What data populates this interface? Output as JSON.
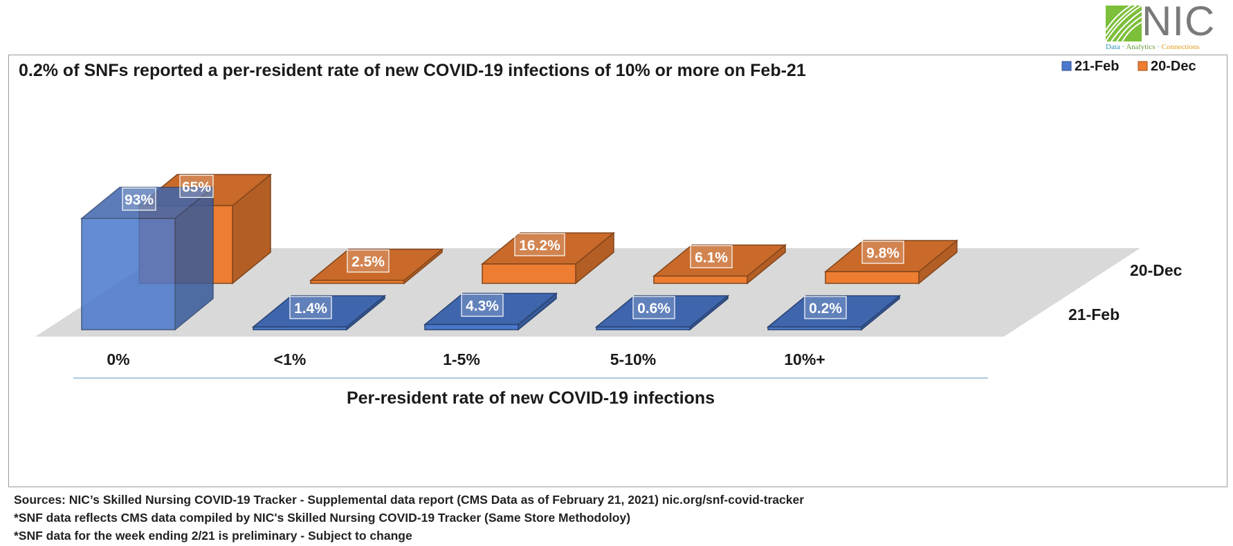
{
  "logo": {
    "text": "NIC",
    "tagline": [
      "Data",
      "Analytics",
      "Connections"
    ]
  },
  "chart_data": {
    "type": "bar",
    "title": "0.2% of SNFs reported a per-resident rate of new COVID-19 infections of 10% or more on Feb-21",
    "xlabel": "Per-resident rate of new COVID-19 infections",
    "categories": [
      "0%",
      "<1%",
      "1-5%",
      "5-10%",
      "10%+"
    ],
    "series": [
      {
        "name": "21-Feb",
        "values": [
          93,
          1.4,
          4.3,
          0.6,
          0.2
        ],
        "labels": [
          "93%",
          "1.4%",
          "4.3%",
          "0.6%",
          "0.2%"
        ],
        "color": "#4a78cc"
      },
      {
        "name": "20-Dec",
        "values": [
          65,
          2.5,
          16.2,
          6.1,
          9.8
        ],
        "labels": [
          "65%",
          "2.5%",
          "16.2%",
          "6.1%",
          "9.8%"
        ],
        "color": "#ed7d31"
      }
    ],
    "depth_labels": [
      "20-Dec",
      "21-Feb"
    ],
    "legend_position": "top-right",
    "style": "3d-column",
    "grid": false
  },
  "footer": {
    "lines": [
      "Sources: NIC’s Skilled Nursing COVID-19 Tracker - Supplemental data report (CMS Data as of February 21, 2021)  nic.org/snf-covid-tracker",
      "*SNF data reflects CMS data compiled by NIC's Skilled Nursing COVID-19 Tracker (Same Store Methodoloy)",
      "*SNF data for the week ending 2/21 is preliminary - Subject to change"
    ]
  }
}
